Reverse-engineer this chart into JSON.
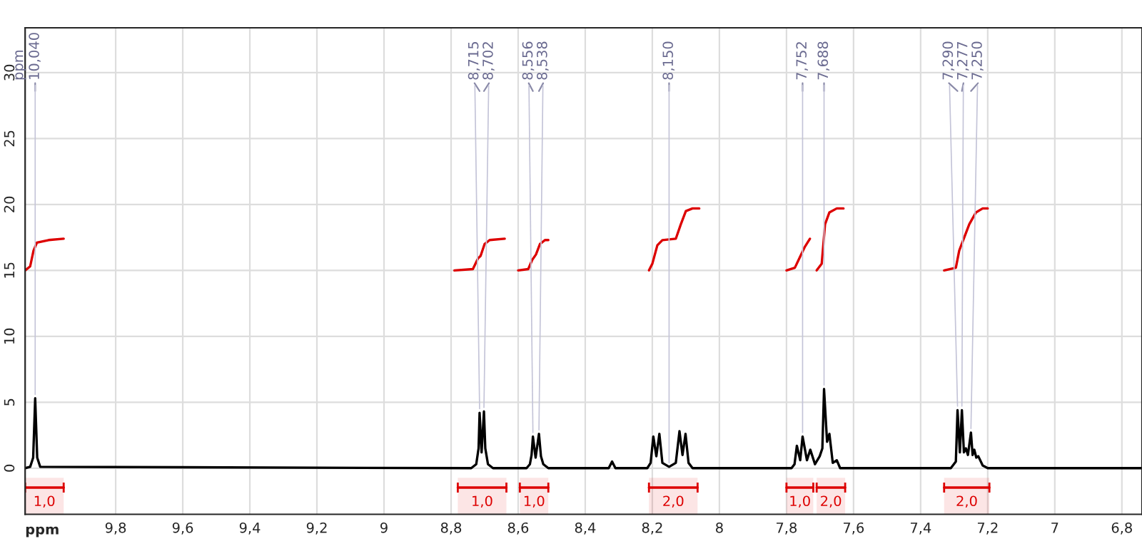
{
  "chart_data": {
    "type": "line",
    "xlabel": "ppm",
    "xlim": [
      10.07,
      6.74
    ],
    "ylim": [
      -3.5,
      33.4
    ],
    "xticks": [
      {
        "value": 9.8,
        "label": "9,8"
      },
      {
        "value": 9.6,
        "label": "9,6"
      },
      {
        "value": 9.4,
        "label": "9,4"
      },
      {
        "value": 9.2,
        "label": "9,2"
      },
      9,
      {
        "value": 8.8,
        "label": "8,8"
      },
      {
        "value": 8.6,
        "label": "8,6"
      },
      {
        "value": 8.4,
        "label": "8,4"
      },
      {
        "value": 8.2,
        "label": "8,2"
      },
      8,
      {
        "value": 7.8,
        "label": "7,8"
      },
      {
        "value": 7.6,
        "label": "7,6"
      },
      {
        "value": 7.4,
        "label": "7,4"
      },
      {
        "value": 7.2,
        "label": "7,2"
      },
      7,
      {
        "value": 6.8,
        "label": "6,8"
      }
    ],
    "yticks": [
      0,
      5,
      10,
      15,
      20,
      25,
      30
    ],
    "grid": true,
    "marker": "none",
    "line_style": "solid",
    "series": [
      {
        "color": "#000000",
        "x": [
          10.07,
          10.055,
          10.046,
          10.04,
          10.034,
          10.025,
          8.74,
          8.725,
          8.718,
          8.715,
          8.709,
          8.702,
          8.698,
          8.69,
          8.675,
          8.575,
          8.565,
          8.56,
          8.556,
          8.548,
          8.538,
          8.532,
          8.525,
          8.51,
          8.33,
          8.32,
          8.31,
          8.215,
          8.205,
          8.197,
          8.188,
          8.179,
          8.17,
          8.15,
          8.13,
          8.119,
          8.11,
          8.101,
          8.092,
          8.08,
          7.785,
          7.776,
          7.769,
          7.759,
          7.752,
          7.739,
          7.729,
          7.715,
          7.701,
          7.693,
          7.688,
          7.679,
          7.672,
          7.662,
          7.65,
          7.64,
          7.31,
          7.295,
          7.29,
          7.283,
          7.277,
          7.271,
          7.265,
          7.259,
          7.25,
          7.245,
          7.24,
          7.234,
          7.228,
          7.215,
          7.2,
          6.74
        ],
        "values": [
          0,
          0.1,
          0.8,
          5.3,
          0.8,
          0.1,
          0,
          0.3,
          1.5,
          4.2,
          1.2,
          4.3,
          1.5,
          0.3,
          0,
          0,
          0.3,
          1.0,
          2.4,
          0.8,
          2.6,
          0.9,
          0.3,
          0,
          0,
          0.5,
          0,
          0,
          0.4,
          2.4,
          0.9,
          2.6,
          0.4,
          0.1,
          0.4,
          2.8,
          1.0,
          2.6,
          0.4,
          0,
          0,
          0.3,
          1.7,
          0.6,
          2.4,
          0.6,
          1.4,
          0.3,
          0.9,
          1.5,
          6.0,
          2.0,
          2.6,
          0.4,
          0.6,
          0,
          0,
          0.5,
          4.4,
          1.2,
          4.4,
          1.2,
          1.5,
          1.0,
          2.7,
          1.0,
          1.4,
          0.8,
          0.9,
          0.2,
          0,
          0
        ]
      },
      {
        "color": "#dd0000",
        "x": [
          10.07,
          10.055,
          10.045,
          10.035,
          10.0,
          9.955
        ],
        "values": [
          15,
          15.3,
          16.5,
          17.1,
          17.3,
          17.4
        ]
      },
      {
        "color": "#dd0000",
        "x": [
          8.79,
          8.735,
          8.72,
          8.712,
          8.7,
          8.685,
          8.64
        ],
        "values": [
          15,
          15.1,
          15.9,
          16.1,
          17.0,
          17.3,
          17.4
        ]
      },
      {
        "color": "#dd0000",
        "x": [
          8.6,
          8.57,
          8.558,
          8.547,
          8.535,
          8.52,
          8.51
        ],
        "values": [
          15,
          15.1,
          15.8,
          16.2,
          17.0,
          17.3,
          17.3
        ]
      },
      {
        "color": "#dd0000",
        "x": [
          8.21,
          8.2,
          8.185,
          8.17,
          8.13,
          8.115,
          8.1,
          8.08,
          8.06
        ],
        "values": [
          15,
          15.5,
          16.9,
          17.3,
          17.4,
          18.5,
          19.5,
          19.7,
          19.7
        ]
      },
      {
        "color": "#dd0000",
        "x": [
          7.8,
          7.775,
          7.76,
          7.745,
          7.73
        ],
        "values": [
          15,
          15.2,
          16.0,
          16.8,
          17.4
        ]
      },
      {
        "color": "#dd0000",
        "x": [
          7.71,
          7.695,
          7.685,
          7.672,
          7.65,
          7.63
        ],
        "values": [
          15,
          15.5,
          18.5,
          19.4,
          19.7,
          19.7
        ]
      },
      {
        "color": "#dd0000",
        "x": [
          7.33,
          7.295,
          7.285,
          7.27,
          7.255,
          7.235,
          7.215,
          7.2
        ],
        "values": [
          15,
          15.2,
          16.5,
          17.5,
          18.5,
          19.4,
          19.7,
          19.7
        ]
      }
    ],
    "bands": [
      {
        "axis": "x",
        "from": 10.07,
        "to": 9.955,
        "label": "1,0",
        "color": "#dd0000"
      },
      {
        "axis": "x",
        "from": 8.78,
        "to": 8.635,
        "label": "1,0",
        "color": "#dd0000"
      },
      {
        "axis": "x",
        "from": 8.595,
        "to": 8.51,
        "label": "1,0",
        "color": "#dd0000"
      },
      {
        "axis": "x",
        "from": 8.21,
        "to": 8.065,
        "label": "2,0",
        "color": "#dd0000"
      },
      {
        "axis": "x",
        "from": 7.8,
        "to": 7.72,
        "label": "1,0",
        "color": "#dd0000"
      },
      {
        "axis": "x",
        "from": 7.71,
        "to": 7.625,
        "label": "2,0",
        "color": "#dd0000"
      },
      {
        "axis": "x",
        "from": 7.33,
        "to": 7.195,
        "label": "2,0",
        "color": "#dd0000"
      }
    ],
    "annotations": [
      "ppm",
      {
        "text": "10,040",
        "x": 10.04,
        "y": 5.3
      },
      {
        "text": "8,715",
        "x": 8.715,
        "y": 4.2
      },
      {
        "text": "8,702",
        "x": 8.702,
        "y": 4.3
      },
      {
        "text": "8,556",
        "x": 8.556,
        "y": 2.4
      },
      {
        "text": "8,538",
        "x": 8.538,
        "y": 2.6
      },
      {
        "text": "8,150",
        "x": 8.15,
        "y": 0.1
      },
      {
        "text": "7,752",
        "x": 7.752,
        "y": 2.4
      },
      {
        "text": "7,688",
        "x": 7.688,
        "y": 6.0
      },
      {
        "text": "7,290",
        "x": 7.29,
        "y": 4.4
      },
      {
        "text": "7,277",
        "x": 7.277,
        "y": 4.4
      },
      {
        "text": "7,250",
        "x": 7.25,
        "y": 2.7
      }
    ]
  }
}
